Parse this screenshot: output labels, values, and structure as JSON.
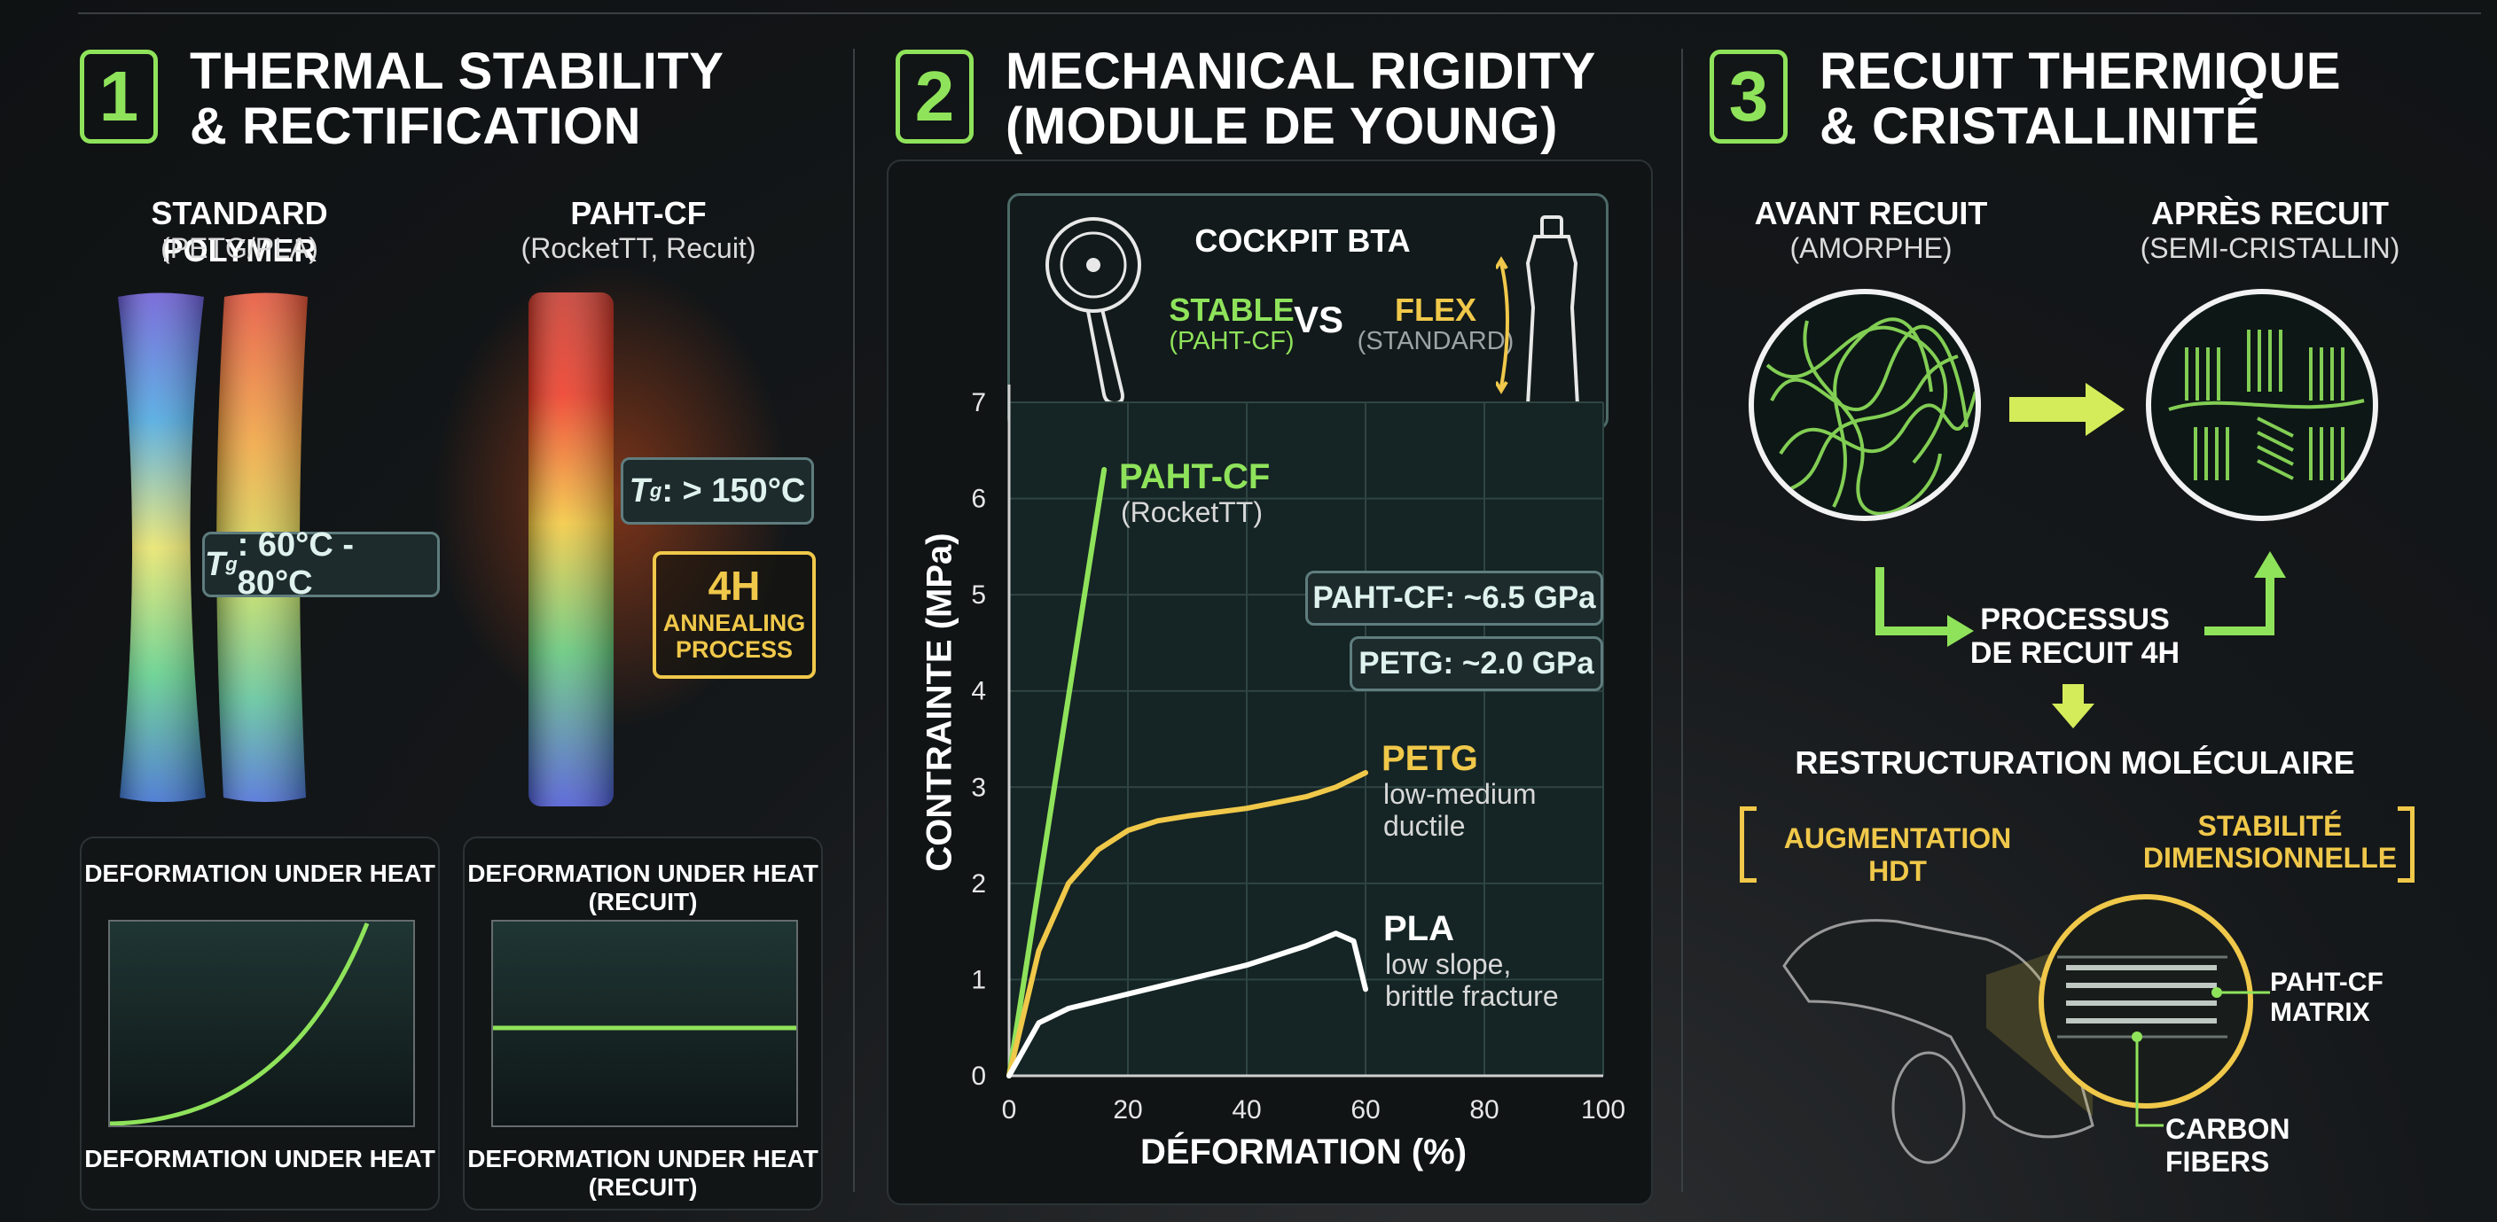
{
  "sections": [
    {
      "number": "1",
      "title": "THERMAL STABILITY\n& RECTIFICATION"
    },
    {
      "number": "2",
      "title": "MECHANICAL RIGIDITY\n(MODULE DE YOUNG)"
    },
    {
      "number": "3",
      "title": "RECUIT THERMIQUE\n& CRISTALLINITÉ"
    }
  ],
  "thermal": {
    "standard_title": "STANDARD POLYMER",
    "standard_sub": "(PETG/PLA)",
    "paht_title": "PAHT-CF",
    "paht_sub": "(RocketTT, Recuit)",
    "tg_std_symbol": "T",
    "tg_std_value": ": 60°C - 80°C",
    "tg_paht_symbol": "T",
    "tg_paht_value": ": > 150°C",
    "tg_subscript": "g",
    "annealing_hours": "4H",
    "annealing_text": "ANNEALING\nPROCESS",
    "chart_left_top": "DEFORMATION UNDER HEAT",
    "chart_left_bottom": "DEFORMATION UNDER HEAT",
    "chart_right_top": "DEFORMATION UNDER HEAT\n(RECUIT)",
    "chart_right_bottom": "DEFORMATION UNDER HEAT\n(RECUIT)",
    "colors": {
      "accent_green": "#8fe35b",
      "accent_yellow": "#f0c84a"
    }
  },
  "cockpit": {
    "title": "COCKPIT BTA",
    "stable": "STABLE",
    "stable_sub": "(PAHT-CF)",
    "vs": "VS",
    "flex": "FLEX",
    "flex_sub": "(STANDARD)",
    "icons": [
      "handlebar-mount-icon",
      "water-bottle-icon"
    ]
  },
  "chart_data": {
    "type": "line",
    "xlabel": "DÉFORMATION (%)",
    "ylabel": "CONTRAINTE (MPa)",
    "xlim": [
      0,
      100
    ],
    "ylim": [
      0,
      7
    ],
    "x_ticks": [
      "0",
      "20",
      "40",
      "60",
      "80",
      "100"
    ],
    "y_ticks": [
      "0",
      "1",
      "2",
      "3",
      "4",
      "5",
      "6",
      "7"
    ],
    "grid": true,
    "series": [
      {
        "name": "PAHT-CF",
        "color": "#8fe35b",
        "x": [
          0,
          16
        ],
        "y": [
          0,
          6.3
        ]
      },
      {
        "name": "PETG",
        "color": "#f0c84a",
        "x": [
          0,
          5,
          10,
          15,
          20,
          25,
          30,
          40,
          50,
          55,
          60
        ],
        "y": [
          0,
          1.3,
          2.0,
          2.35,
          2.55,
          2.65,
          2.7,
          2.78,
          2.9,
          3.0,
          3.15
        ]
      },
      {
        "name": "PLA",
        "color": "#ffffff",
        "x": [
          0,
          5,
          10,
          20,
          30,
          40,
          50,
          55,
          58,
          60
        ],
        "y": [
          0,
          0.55,
          0.7,
          0.85,
          1.0,
          1.15,
          1.35,
          1.48,
          1.4,
          0.9
        ]
      }
    ],
    "annotations": [
      {
        "series": "PAHT-CF",
        "label": "PAHT-CF",
        "sub": "(RocketTT)"
      },
      {
        "series": "PETG",
        "label": "PETG",
        "sub": "low-medium\nductile"
      },
      {
        "series": "PLA",
        "label": "PLA",
        "sub": "low slope,\nbrittle fracture"
      }
    ],
    "modulus_tags": [
      "PAHT-CF: ~6.5 GPa",
      "PETG: ~2.0 GPa"
    ]
  },
  "annealing": {
    "before_title": "AVANT RECUIT",
    "before_sub": "(AMORPHE)",
    "after_title": "APRÈS RECUIT",
    "after_sub": "(SEMI-CRISTALLIN)",
    "process": "PROCESSUS\nDE RECUIT 4H",
    "restructuring": "RESTRUCTURATION MOLÉCULAIRE",
    "hdt": "AUGMENTATION HDT",
    "stability": "STABILITÉ\nDIMENSIONNELLE",
    "matrix": "PAHT-CF\nMATRIX",
    "fibers": "CARBON FIBERS"
  }
}
